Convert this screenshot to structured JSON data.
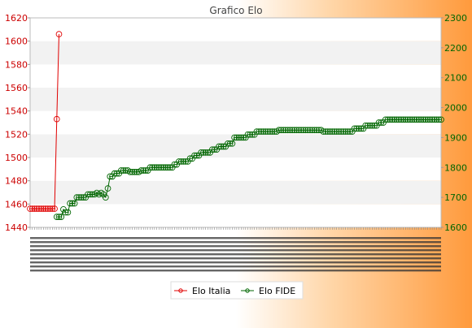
{
  "chart_data": {
    "type": "line",
    "title": "Grafico Elo",
    "legend_position": "bottom",
    "grid": true,
    "axes": {
      "y_left": {
        "min": 1440,
        "max": 1620,
        "step": 20,
        "color": "#cc0000",
        "ticks": [
          "1440",
          "1460",
          "1480",
          "1500",
          "1520",
          "1540",
          "1560",
          "1580",
          "1600",
          "1620"
        ]
      },
      "y_right": {
        "min": 1600,
        "max": 2300,
        "step": 100,
        "color": "#006600",
        "ticks": [
          "1600",
          "1700",
          "1800",
          "1900",
          "2000",
          "2100",
          "2200",
          "2300"
        ]
      }
    },
    "series": [
      {
        "name": "Elo Italia",
        "axis": "left",
        "color": "#e00000",
        "start_index": 0,
        "values": [
          1456,
          1456,
          1456,
          1456,
          1456,
          1456,
          1456,
          1456,
          1456,
          1456,
          1456,
          1456,
          1533,
          1606
        ]
      },
      {
        "name": "Elo FIDE",
        "axis": "right",
        "color": "#006600",
        "start_index": 12,
        "values": [
          1635,
          1635,
          1635,
          1660,
          1650,
          1650,
          1680,
          1680,
          1680,
          1700,
          1700,
          1700,
          1700,
          1700,
          1710,
          1710,
          1710,
          1710,
          1715,
          1710,
          1715,
          1710,
          1700,
          1730,
          1770,
          1770,
          1780,
          1780,
          1780,
          1790,
          1790,
          1790,
          1790,
          1785,
          1785,
          1785,
          1785,
          1785,
          1790,
          1790,
          1790,
          1790,
          1800,
          1800,
          1800,
          1800,
          1800,
          1800,
          1800,
          1800,
          1800,
          1800,
          1800,
          1810,
          1810,
          1820,
          1820,
          1820,
          1820,
          1820,
          1830,
          1830,
          1840,
          1840,
          1840,
          1850,
          1850,
          1850,
          1850,
          1850,
          1860,
          1860,
          1860,
          1870,
          1870,
          1870,
          1870,
          1880,
          1880,
          1880,
          1900,
          1900,
          1900,
          1900,
          1900,
          1900,
          1910,
          1910,
          1910,
          1910,
          1920,
          1920,
          1920,
          1920,
          1920,
          1920,
          1920,
          1920,
          1920,
          1920,
          1925,
          1925,
          1925,
          1925,
          1925,
          1925,
          1925,
          1925,
          1925,
          1925,
          1925,
          1925,
          1925,
          1925,
          1925,
          1925,
          1925,
          1925,
          1925,
          1925,
          1920,
          1920,
          1920,
          1920,
          1920,
          1920,
          1920,
          1920,
          1920,
          1920,
          1920,
          1920,
          1920,
          1920,
          1930,
          1930,
          1930,
          1930,
          1930,
          1940,
          1940,
          1940,
          1940,
          1940,
          1940,
          1950,
          1950,
          1950,
          1960,
          1960,
          1960,
          1960,
          1960,
          1960,
          1960,
          1960,
          1960,
          1960,
          1960,
          1960,
          1960,
          1960,
          1960,
          1960,
          1960,
          1960,
          1960,
          1960,
          1960,
          1960,
          1960,
          1960,
          1960,
          1960
        ]
      }
    ]
  }
}
